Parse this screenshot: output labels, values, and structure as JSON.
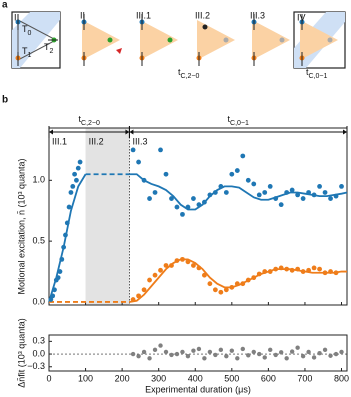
{
  "panel_a": {
    "label": "a",
    "stages": [
      "I",
      "II",
      "III.1",
      "III.2",
      "III.3",
      "IV"
    ],
    "traps": [
      {
        "text": "T",
        "sub": "0"
      },
      {
        "text": "T",
        "sub": "1"
      },
      {
        "text": "T",
        "sub": "2"
      }
    ],
    "times": [
      {
        "text": "t",
        "sub": "C,2−0"
      },
      {
        "text": "t",
        "sub": "C,0−1"
      }
    ]
  },
  "chart_data": {
    "type": "scatter",
    "label": "b",
    "xlabel": "Experimental duration (μs)",
    "ylabel": "Motional excitation, n̄ (10³ quanta)",
    "residual_ylabel": "Δn̄fit (10³ quanta)",
    "xlim": [
      0,
      815
    ],
    "xticks": [
      0,
      100,
      200,
      300,
      400,
      500,
      600,
      700,
      800
    ],
    "ylim": [
      -0.025,
      1.43
    ],
    "yticks": [
      {
        "value": 0,
        "label": "0.0"
      },
      {
        "value": 0.5,
        "label": "0.5"
      },
      {
        "value": 1,
        "label": "1.0"
      }
    ],
    "residual_ylim": [
      -0.4,
      0.45
    ],
    "residual_yticks": [
      {
        "value": 0.3,
        "label": "0.3"
      },
      {
        "value": 0,
        "label": "0.0"
      },
      {
        "value": -0.3,
        "label": "−0.3"
      }
    ],
    "shaded_region": [
      100,
      220
    ],
    "region_labels": [
      {
        "text": "III.1",
        "x": 0
      },
      {
        "text": "III.2",
        "x": 100
      },
      {
        "text": "III.3",
        "x": 220
      }
    ],
    "intervals": [
      {
        "text": "t",
        "sub": "C,2−0",
        "x": [
          0,
          220
        ]
      },
      {
        "text": "t",
        "sub": "C,0−1",
        "x": [
          220,
          815
        ]
      }
    ],
    "series": [
      {
        "color": "#1f77b4",
        "x": [
          5,
          10,
          15,
          20,
          25,
          30,
          35,
          40,
          45,
          50,
          55,
          60,
          65,
          70,
          75,
          80,
          85,
          230,
          245,
          260,
          275,
          290,
          305,
          320,
          335,
          350,
          365,
          380,
          395,
          410,
          425,
          440,
          455,
          470,
          485,
          500,
          515,
          530,
          545,
          560,
          575,
          590,
          605,
          620,
          635,
          650,
          665,
          680,
          695,
          710,
          725,
          740,
          755,
          770,
          785,
          800
        ],
        "values": [
          0.02,
          0.05,
          0.1,
          0.18,
          0.2,
          0.25,
          0.35,
          0.45,
          0.55,
          0.65,
          0.78,
          0.9,
          0.95,
          1.05,
          1.0,
          1.1,
          1.15,
          1.25,
          1.15,
          1.0,
          0.85,
          0.9,
          1.25,
          1.05,
          0.85,
          0.78,
          0.72,
          0.78,
          0.85,
          0.8,
          0.82,
          0.88,
          0.9,
          0.95,
          0.9,
          1.05,
          1.08,
          1.2,
          1.0,
          0.97,
          0.88,
          0.9,
          0.95,
          0.85,
          0.8,
          0.9,
          0.92,
          0.88,
          0.85,
          0.9,
          0.88,
          0.95,
          0.9,
          0.85,
          0.87,
          0.95
        ]
      },
      {
        "color": "#ef7d1a",
        "x": [
          230,
          245,
          260,
          275,
          290,
          305,
          320,
          335,
          350,
          365,
          380,
          395,
          410,
          425,
          440,
          455,
          470,
          485,
          500,
          515,
          530,
          545,
          560,
          575,
          590,
          605,
          620,
          635,
          650,
          665,
          680,
          695,
          710,
          725,
          740,
          755,
          770,
          785
        ],
        "values": [
          0.02,
          0.05,
          0.1,
          0.18,
          0.22,
          0.26,
          0.3,
          0.3,
          0.34,
          0.35,
          0.33,
          0.3,
          0.28,
          0.22,
          0.15,
          0.1,
          0.08,
          0.1,
          0.12,
          0.15,
          0.15,
          0.18,
          0.2,
          0.23,
          0.25,
          0.25,
          0.27,
          0.28,
          0.27,
          0.26,
          0.27,
          0.25,
          0.26,
          0.28,
          0.27,
          0.24,
          0.25,
          0.24
        ]
      }
    ],
    "fits": [
      {
        "color": "#1f77b4",
        "dashed": false,
        "x": [
          0,
          20,
          40,
          60,
          80,
          100
        ],
        "values": [
          0,
          0.2,
          0.45,
          0.75,
          0.95,
          1.05
        ]
      },
      {
        "color": "#1f77b4",
        "dashed": true,
        "x": [
          100,
          220
        ],
        "values": [
          1.05,
          1.05
        ]
      },
      {
        "color": "#1f77b4",
        "dashed": false,
        "x": [
          220,
          240,
          260,
          280,
          300,
          320,
          340,
          360,
          380,
          400,
          420,
          440,
          460,
          480,
          500,
          520,
          540,
          560,
          580,
          600,
          620,
          640,
          660,
          680,
          700,
          720,
          740,
          760,
          780,
          800,
          815
        ],
        "values": [
          1.05,
          1.05,
          1.0,
          0.97,
          0.95,
          0.92,
          0.87,
          0.8,
          0.76,
          0.76,
          0.8,
          0.87,
          0.92,
          0.95,
          0.95,
          0.94,
          0.9,
          0.86,
          0.84,
          0.84,
          0.86,
          0.88,
          0.9,
          0.9,
          0.89,
          0.88,
          0.87,
          0.87,
          0.88,
          0.89,
          0.9
        ]
      },
      {
        "color": "#ef7d1a",
        "dashed": true,
        "x": [
          0,
          220
        ],
        "values": [
          0,
          0
        ]
      },
      {
        "color": "#ef7d1a",
        "dashed": false,
        "x": [
          220,
          240,
          260,
          280,
          300,
          320,
          340,
          360,
          380,
          400,
          420,
          440,
          460,
          480,
          500,
          520,
          540,
          560,
          580,
          600,
          620,
          640,
          660,
          680,
          700,
          720,
          740,
          760,
          780,
          800,
          815
        ],
        "values": [
          0,
          0.01,
          0.06,
          0.13,
          0.2,
          0.27,
          0.32,
          0.35,
          0.35,
          0.32,
          0.27,
          0.2,
          0.15,
          0.12,
          0.12,
          0.14,
          0.17,
          0.2,
          0.23,
          0.25,
          0.27,
          0.27,
          0.27,
          0.26,
          0.25,
          0.24,
          0.24,
          0.24,
          0.24,
          0.25,
          0.25
        ]
      }
    ],
    "residuals": {
      "color": "#808080",
      "x": [
        230,
        245,
        260,
        275,
        290,
        305,
        320,
        335,
        350,
        365,
        380,
        395,
        410,
        425,
        440,
        455,
        470,
        485,
        500,
        515,
        530,
        545,
        560,
        575,
        590,
        605,
        620,
        635,
        650,
        665,
        680,
        695,
        710,
        725,
        740,
        755,
        770,
        785,
        800
      ],
      "values": [
        0.0,
        -0.05,
        0.05,
        -0.1,
        0.1,
        0.2,
        0.05,
        -0.02,
        0.0,
        0.05,
        -0.05,
        0.08,
        0.12,
        -0.1,
        0.05,
        -0.02,
        0.1,
        -0.05,
        0.08,
        -0.1,
        0.12,
        -0.03,
        0.05,
        0.0,
        -0.08,
        0.1,
        -0.02,
        0.04,
        -0.1,
        0.06,
        0.15,
        -0.05,
        0.05,
        -0.08,
        0.02,
        0.1,
        -0.04,
        0.0,
        0.05
      ]
    }
  }
}
